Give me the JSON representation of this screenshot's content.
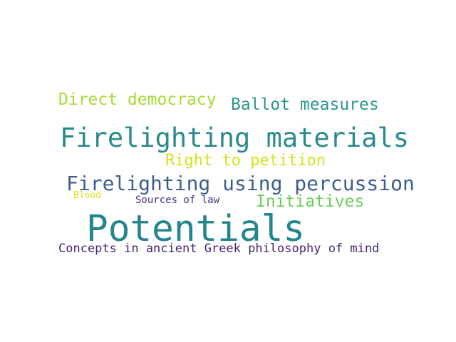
{
  "words": [
    {
      "id": "direct-democracy",
      "text": "Direct democracy",
      "color": "#a5db36"
    },
    {
      "id": "ballot-measures",
      "text": "Ballot measures",
      "color": "#2a968c"
    },
    {
      "id": "firelighting-materials",
      "text": "Firelighting materials",
      "color": "#2b8a8e"
    },
    {
      "id": "right-to-petition",
      "text": "Right to petition",
      "color": "#d2e21b"
    },
    {
      "id": "firelighting-percussion",
      "text": "Firelighting using percussion",
      "color": "#3e5f8e"
    },
    {
      "id": "blood",
      "text": "Blood",
      "color": "#e0e21e"
    },
    {
      "id": "sources-of-law",
      "text": "Sources of law",
      "color": "#472f7d"
    },
    {
      "id": "initiatives",
      "text": "Initiatives",
      "color": "#6ccd5a"
    },
    {
      "id": "potentials",
      "text": "Potentials",
      "color": "#25858e"
    },
    {
      "id": "concepts",
      "text": "Concepts in ancient Greek philosophy of mind",
      "color": "#46256f"
    }
  ]
}
